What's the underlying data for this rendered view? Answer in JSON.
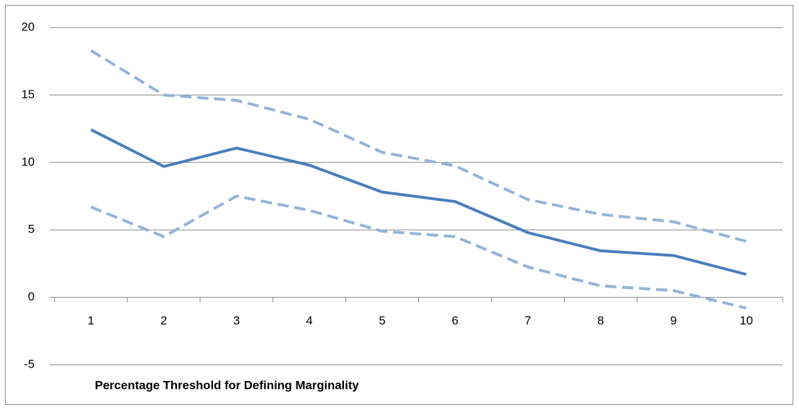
{
  "chart_data": {
    "type": "line",
    "x_label": "Percentage Threshold for Defining Marginality",
    "categories": [
      "1",
      "2",
      "3",
      "4",
      "5",
      "6",
      "7",
      "8",
      "9",
      "10"
    ],
    "series": [
      {
        "color": "#95b3d7",
        "dashed": true,
        "values": [
          18.3,
          15.0,
          14.6,
          13.2,
          10.75,
          9.75,
          7.25,
          6.15,
          5.6,
          4.15
        ]
      },
      {
        "color": "#4a7ebb",
        "dashed": false,
        "values": [
          12.43,
          9.7,
          11.07,
          9.8,
          7.8,
          7.1,
          4.8,
          3.45,
          3.1,
          1.7
        ]
      },
      {
        "color": "#95b3d7",
        "dashed": true,
        "values": [
          6.7,
          4.5,
          7.5,
          6.45,
          4.9,
          4.5,
          2.25,
          0.85,
          0.5,
          -0.8
        ]
      }
    ],
    "ylim": [
      -5,
      20
    ],
    "yticks": [
      -5,
      0,
      5,
      10,
      15,
      20
    ],
    "grid": true
  }
}
